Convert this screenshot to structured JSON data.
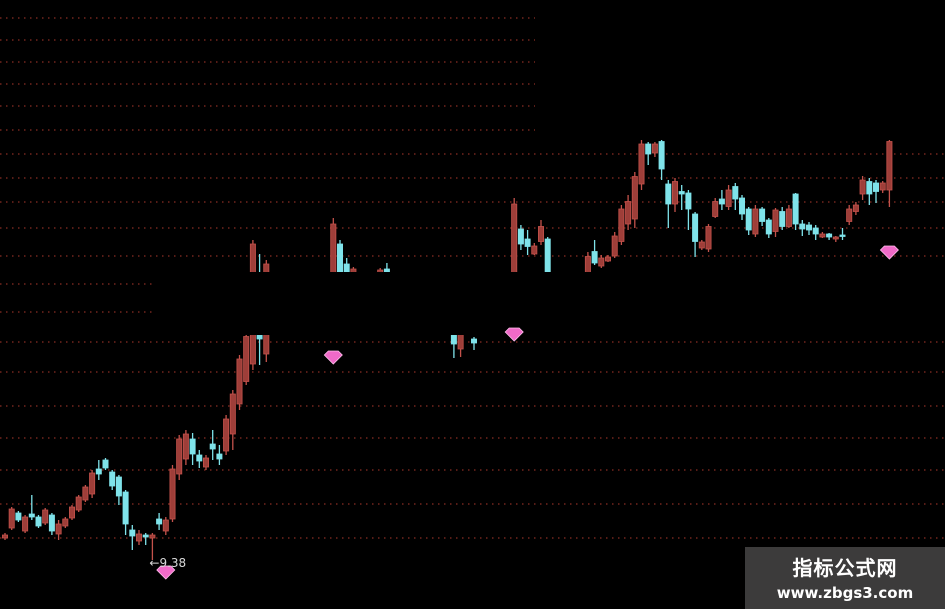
{
  "chart_data": {
    "type": "candlestick",
    "title": "",
    "xlabel": "",
    "ylabel": "",
    "grid": true,
    "colors": {
      "up": "#c4524b",
      "down": "#7fe3ea",
      "grid": "#8a2e24",
      "marker": "#f06ac8",
      "annotation": "#d8d8d8"
    },
    "candle_fields": [
      "index",
      "open",
      "high",
      "low",
      "close"
    ],
    "candles": [
      [
        0,
        9.82,
        9.92,
        9.78,
        9.88
      ],
      [
        1,
        10.02,
        10.44,
        9.98,
        10.4
      ],
      [
        2,
        10.32,
        10.36,
        10.14,
        10.18
      ],
      [
        3,
        9.96,
        10.28,
        9.92,
        10.24
      ],
      [
        4,
        10.3,
        10.68,
        10.18,
        10.24
      ],
      [
        5,
        10.24,
        10.28,
        10.02,
        10.06
      ],
      [
        6,
        10.12,
        10.42,
        10.08,
        10.38
      ],
      [
        7,
        10.28,
        10.32,
        9.88,
        9.96
      ],
      [
        8,
        9.9,
        10.18,
        9.78,
        10.1
      ],
      [
        9,
        10.06,
        10.24,
        10.02,
        10.2
      ],
      [
        10,
        10.22,
        10.48,
        10.18,
        10.44
      ],
      [
        11,
        10.38,
        10.68,
        10.34,
        10.64
      ],
      [
        12,
        10.58,
        10.88,
        10.54,
        10.84
      ],
      [
        13,
        10.7,
        11.18,
        10.62,
        11.12
      ],
      [
        14,
        11.2,
        11.38,
        10.98,
        11.1
      ],
      [
        15,
        11.38,
        11.42,
        11.18,
        11.22
      ],
      [
        16,
        11.14,
        11.18,
        10.78,
        10.86
      ],
      [
        17,
        11.04,
        11.08,
        10.48,
        10.66
      ],
      [
        18,
        10.74,
        10.78,
        9.88,
        10.1
      ],
      [
        19,
        9.98,
        10.08,
        9.58,
        9.86
      ],
      [
        20,
        9.76,
        9.98,
        9.68,
        9.9
      ],
      [
        21,
        9.88,
        9.92,
        9.68,
        9.84
      ],
      [
        22,
        9.82,
        9.92,
        9.38,
        9.88
      ],
      [
        23,
        10.2,
        10.32,
        9.98,
        10.1
      ],
      [
        24,
        9.96,
        10.24,
        9.88,
        10.18
      ],
      [
        25,
        10.2,
        11.28,
        10.14,
        11.2
      ],
      [
        26,
        11.1,
        11.88,
        10.98,
        11.8
      ],
      [
        27,
        11.4,
        11.98,
        11.28,
        11.9
      ],
      [
        28,
        11.8,
        11.92,
        11.28,
        11.5
      ],
      [
        29,
        11.48,
        11.58,
        11.22,
        11.36
      ],
      [
        30,
        11.24,
        11.48,
        11.18,
        11.42
      ],
      [
        31,
        11.7,
        11.98,
        11.38,
        11.6
      ],
      [
        32,
        11.5,
        11.68,
        11.28,
        11.4
      ],
      [
        33,
        11.56,
        12.28,
        11.48,
        12.2
      ],
      [
        34,
        11.9,
        12.78,
        11.58,
        12.7
      ],
      [
        35,
        12.5,
        13.48,
        12.38,
        13.4
      ],
      [
        36,
        12.95,
        13.88,
        12.88,
        13.85
      ],
      [
        37,
        13.3,
        15.78,
        13.18,
        15.7
      ],
      [
        38,
        15.0,
        15.5,
        13.28,
        13.8
      ],
      [
        39,
        13.5,
        15.38,
        13.34,
        15.3
      ],
      [
        49,
        15.0,
        16.22,
        14.9,
        16.1
      ],
      [
        50,
        15.7,
        15.78,
        14.9,
        14.95
      ],
      [
        51,
        15.3,
        15.42,
        14.95,
        15.0
      ],
      [
        52,
        15.1,
        15.24,
        15.0,
        15.2
      ],
      [
        56,
        15.05,
        15.22,
        15.0,
        15.18
      ],
      [
        57,
        15.2,
        15.32,
        15.0,
        15.05
      ],
      [
        67,
        13.92,
        13.95,
        13.42,
        13.7
      ],
      [
        68,
        13.6,
        13.95,
        13.44,
        13.9
      ],
      [
        70,
        13.8,
        13.84,
        13.58,
        13.72
      ],
      [
        76,
        15.0,
        16.62,
        14.9,
        16.5
      ],
      [
        77,
        16.0,
        16.08,
        15.58,
        15.7
      ],
      [
        78,
        15.8,
        15.98,
        15.48,
        15.65
      ],
      [
        79,
        15.5,
        15.72,
        15.48,
        15.66
      ],
      [
        80,
        15.75,
        16.18,
        15.68,
        16.05
      ],
      [
        81,
        15.8,
        15.84,
        15.0,
        15.1
      ],
      [
        87,
        15.1,
        15.54,
        15.0,
        15.45
      ],
      [
        88,
        15.55,
        15.78,
        15.28,
        15.32
      ],
      [
        89,
        15.26,
        15.48,
        15.22,
        15.42
      ],
      [
        90,
        15.36,
        15.48,
        15.34,
        15.44
      ],
      [
        91,
        15.46,
        15.94,
        15.42,
        15.86
      ],
      [
        92,
        15.75,
        16.48,
        15.68,
        16.4
      ],
      [
        93,
        16.1,
        16.68,
        15.98,
        16.55
      ],
      [
        94,
        16.2,
        17.14,
        16.02,
        17.05
      ],
      [
        95,
        16.9,
        17.78,
        16.78,
        17.7
      ],
      [
        96,
        17.7,
        17.74,
        17.28,
        17.5
      ],
      [
        97,
        17.52,
        17.74,
        17.44,
        17.7
      ],
      [
        98,
        17.75,
        17.78,
        16.98,
        17.2
      ],
      [
        99,
        16.9,
        16.98,
        16.02,
        16.5
      ],
      [
        100,
        16.5,
        17.02,
        16.34,
        16.95
      ],
      [
        101,
        16.75,
        16.88,
        16.38,
        16.7
      ],
      [
        102,
        16.72,
        16.78,
        15.98,
        16.4
      ],
      [
        103,
        16.3,
        16.34,
        15.44,
        15.75
      ],
      [
        104,
        15.62,
        15.78,
        15.58,
        15.74
      ],
      [
        105,
        15.6,
        16.1,
        15.54,
        16.05
      ],
      [
        106,
        16.25,
        16.62,
        16.22,
        16.55
      ],
      [
        107,
        16.6,
        16.78,
        16.38,
        16.5
      ],
      [
        108,
        16.45,
        16.88,
        16.38,
        16.78
      ],
      [
        109,
        16.85,
        16.92,
        16.38,
        16.6
      ],
      [
        110,
        16.62,
        16.68,
        16.18,
        16.3
      ],
      [
        111,
        16.4,
        16.44,
        15.88,
        15.98
      ],
      [
        112,
        15.9,
        16.48,
        15.84,
        16.4
      ],
      [
        113,
        16.4,
        16.44,
        16.06,
        16.15
      ],
      [
        114,
        16.18,
        16.22,
        15.82,
        15.9
      ],
      [
        115,
        15.95,
        16.42,
        15.84,
        16.38
      ],
      [
        116,
        16.35,
        16.44,
        15.98,
        16.05
      ],
      [
        117,
        16.05,
        16.48,
        16.02,
        16.4
      ],
      [
        118,
        16.7,
        16.72,
        15.98,
        16.1
      ],
      [
        119,
        16.1,
        16.18,
        15.86,
        16.0
      ],
      [
        120,
        16.08,
        16.14,
        15.88,
        15.98
      ],
      [
        121,
        16.02,
        16.08,
        15.78,
        15.9
      ],
      [
        122,
        15.84,
        15.94,
        15.82,
        15.9
      ],
      [
        123,
        15.9,
        15.92,
        15.78,
        15.84
      ],
      [
        124,
        15.8,
        15.86,
        15.74,
        15.84
      ],
      [
        125,
        15.88,
        16.02,
        15.78,
        15.85
      ],
      [
        126,
        16.15,
        16.48,
        16.08,
        16.4
      ],
      [
        127,
        16.35,
        16.54,
        16.28,
        16.48
      ],
      [
        128,
        16.7,
        17.06,
        16.58,
        16.98
      ],
      [
        129,
        16.95,
        17.02,
        16.48,
        16.7
      ],
      [
        130,
        16.92,
        16.98,
        16.52,
        16.75
      ],
      [
        131,
        16.78,
        16.96,
        16.72,
        16.92
      ],
      [
        132,
        16.78,
        17.78,
        16.44,
        17.75
      ]
    ],
    "annotations": [
      {
        "index": 22,
        "price": 9.38,
        "text": "←9.38"
      }
    ],
    "markers": [
      {
        "index": 24,
        "price": 9.12,
        "shape": "diamond"
      },
      {
        "index": 49,
        "price": 13.42,
        "shape": "diamond"
      },
      {
        "index": 76,
        "price": 13.88,
        "shape": "diamond"
      },
      {
        "index": 132,
        "price": 15.52,
        "shape": "diamond"
      }
    ]
  },
  "watermark": {
    "name": "指标公式网",
    "url": "www.zbgs3.com"
  }
}
